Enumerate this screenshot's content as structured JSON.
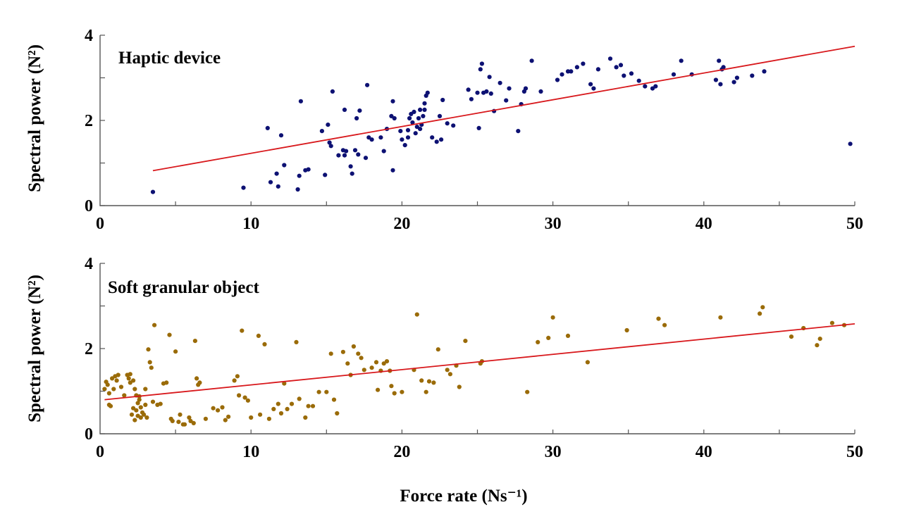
{
  "chart_data": [
    {
      "type": "scatter",
      "title": "Haptic device",
      "ylabel": "Spectral power (N²)",
      "xlim": [
        0,
        50
      ],
      "ylim": [
        0,
        4
      ],
      "xticks": [
        "0",
        "10",
        "20",
        "30",
        "40",
        "50"
      ],
      "yticks": [
        "0",
        "2",
        "4"
      ],
      "grid": false,
      "point_color": "#0d1173",
      "fit_color": "#d8181c",
      "fit_line": {
        "x": [
          3.5,
          50
        ],
        "y": [
          0.82,
          3.74
        ]
      },
      "points": [
        [
          3.5,
          0.32
        ],
        [
          9.5,
          0.42
        ],
        [
          11.1,
          1.82
        ],
        [
          11.3,
          0.55
        ],
        [
          11.7,
          0.75
        ],
        [
          11.8,
          0.45
        ],
        [
          12.0,
          1.65
        ],
        [
          12.2,
          0.95
        ],
        [
          13.1,
          0.38
        ],
        [
          13.3,
          2.45
        ],
        [
          13.2,
          0.7
        ],
        [
          13.6,
          0.83
        ],
        [
          13.8,
          0.85
        ],
        [
          14.7,
          1.75
        ],
        [
          14.9,
          0.72
        ],
        [
          15.1,
          1.9
        ],
        [
          15.2,
          1.48
        ],
        [
          15.3,
          1.4
        ],
        [
          15.4,
          2.68
        ],
        [
          15.8,
          1.18
        ],
        [
          16.1,
          1.3
        ],
        [
          16.2,
          2.25
        ],
        [
          16.2,
          1.18
        ],
        [
          16.3,
          1.28
        ],
        [
          16.6,
          0.92
        ],
        [
          16.7,
          0.75
        ],
        [
          16.9,
          1.3
        ],
        [
          17.1,
          1.2
        ],
        [
          17.0,
          2.05
        ],
        [
          17.2,
          2.23
        ],
        [
          17.7,
          2.83
        ],
        [
          17.6,
          1.12
        ],
        [
          17.8,
          1.6
        ],
        [
          18.0,
          1.55
        ],
        [
          18.6,
          1.6
        ],
        [
          18.8,
          1.28
        ],
        [
          19.0,
          1.8
        ],
        [
          19.3,
          2.1
        ],
        [
          19.4,
          2.45
        ],
        [
          19.5,
          2.05
        ],
        [
          19.4,
          0.83
        ],
        [
          19.9,
          1.75
        ],
        [
          20.0,
          1.55
        ],
        [
          20.2,
          1.42
        ],
        [
          20.4,
          1.77
        ],
        [
          20.4,
          1.6
        ],
        [
          20.5,
          2.05
        ],
        [
          20.6,
          2.15
        ],
        [
          20.7,
          1.95
        ],
        [
          20.8,
          2.2
        ],
        [
          20.9,
          1.7
        ],
        [
          21.0,
          1.85
        ],
        [
          21.1,
          2.05
        ],
        [
          21.2,
          1.8
        ],
        [
          21.2,
          2.25
        ],
        [
          21.3,
          1.9
        ],
        [
          21.4,
          2.1
        ],
        [
          21.5,
          2.4
        ],
        [
          21.6,
          2.58
        ],
        [
          21.7,
          2.65
        ],
        [
          21.5,
          2.25
        ],
        [
          22.0,
          1.6
        ],
        [
          22.3,
          1.5
        ],
        [
          22.5,
          2.1
        ],
        [
          22.6,
          1.55
        ],
        [
          22.7,
          2.48
        ],
        [
          23.0,
          1.93
        ],
        [
          23.4,
          1.88
        ],
        [
          24.4,
          2.72
        ],
        [
          24.6,
          2.5
        ],
        [
          25.0,
          2.65
        ],
        [
          25.1,
          1.82
        ],
        [
          25.2,
          3.2
        ],
        [
          25.3,
          3.33
        ],
        [
          25.4,
          2.65
        ],
        [
          25.6,
          2.68
        ],
        [
          25.8,
          3.02
        ],
        [
          25.9,
          2.63
        ],
        [
          26.1,
          2.22
        ],
        [
          26.5,
          2.88
        ],
        [
          26.9,
          2.47
        ],
        [
          27.1,
          2.75
        ],
        [
          27.7,
          1.75
        ],
        [
          27.9,
          2.38
        ],
        [
          28.1,
          2.68
        ],
        [
          28.2,
          2.75
        ],
        [
          28.6,
          3.4
        ],
        [
          29.2,
          2.68
        ],
        [
          30.3,
          2.95
        ],
        [
          30.6,
          3.08
        ],
        [
          31.0,
          3.15
        ],
        [
          31.2,
          3.15
        ],
        [
          31.6,
          3.25
        ],
        [
          32.0,
          3.33
        ],
        [
          32.5,
          2.85
        ],
        [
          32.7,
          2.75
        ],
        [
          33.0,
          3.2
        ],
        [
          33.8,
          3.45
        ],
        [
          34.2,
          3.25
        ],
        [
          34.5,
          3.3
        ],
        [
          34.7,
          3.05
        ],
        [
          35.2,
          3.1
        ],
        [
          35.7,
          2.93
        ],
        [
          36.1,
          2.8
        ],
        [
          36.6,
          2.75
        ],
        [
          36.8,
          2.8
        ],
        [
          38.0,
          3.08
        ],
        [
          38.5,
          3.4
        ],
        [
          39.2,
          3.08
        ],
        [
          40.8,
          2.95
        ],
        [
          41.0,
          3.4
        ],
        [
          41.1,
          2.85
        ],
        [
          41.2,
          3.2
        ],
        [
          41.3,
          3.25
        ],
        [
          42.0,
          2.9
        ],
        [
          42.2,
          3.0
        ],
        [
          43.2,
          3.05
        ],
        [
          44.0,
          3.15
        ],
        [
          49.7,
          1.45
        ]
      ]
    },
    {
      "type": "scatter",
      "title": "Soft granular object",
      "ylabel": "Spectral power (N²)",
      "xlabel": "Force rate (Ns⁻¹)",
      "xlim": [
        0,
        50
      ],
      "ylim": [
        0,
        4
      ],
      "xticks": [
        "0",
        "10",
        "20",
        "30",
        "40",
        "50"
      ],
      "yticks": [
        "0",
        "2",
        "4"
      ],
      "grid": false,
      "point_color": "#9a6b08",
      "fit_color": "#d8181c",
      "fit_line": {
        "x": [
          0.3,
          50
        ],
        "y": [
          0.8,
          2.58
        ]
      },
      "points": [
        [
          0.3,
          1.05
        ],
        [
          0.4,
          1.22
        ],
        [
          0.5,
          1.15
        ],
        [
          0.6,
          0.95
        ],
        [
          0.6,
          0.68
        ],
        [
          0.7,
          0.65
        ],
        [
          0.8,
          1.3
        ],
        [
          0.9,
          1.05
        ],
        [
          1.0,
          1.35
        ],
        [
          1.1,
          1.25
        ],
        [
          1.2,
          1.38
        ],
        [
          1.4,
          1.1
        ],
        [
          1.6,
          0.9
        ],
        [
          1.8,
          1.38
        ],
        [
          1.9,
          1.3
        ],
        [
          2.0,
          1.2
        ],
        [
          2.0,
          1.4
        ],
        [
          2.1,
          0.45
        ],
        [
          2.2,
          0.6
        ],
        [
          2.2,
          1.25
        ],
        [
          2.3,
          1.05
        ],
        [
          2.3,
          0.32
        ],
        [
          2.4,
          0.9
        ],
        [
          2.4,
          0.55
        ],
        [
          2.5,
          0.72
        ],
        [
          2.5,
          0.42
        ],
        [
          2.6,
          0.88
        ],
        [
          2.6,
          0.8
        ],
        [
          2.7,
          0.62
        ],
        [
          2.7,
          0.38
        ],
        [
          2.8,
          0.5
        ],
        [
          2.9,
          0.45
        ],
        [
          3.0,
          1.05
        ],
        [
          3.0,
          0.68
        ],
        [
          3.1,
          0.38
        ],
        [
          3.2,
          1.98
        ],
        [
          3.3,
          1.68
        ],
        [
          3.4,
          1.55
        ],
        [
          3.5,
          0.75
        ],
        [
          3.6,
          2.55
        ],
        [
          3.8,
          0.68
        ],
        [
          4.0,
          0.7
        ],
        [
          4.2,
          1.18
        ],
        [
          4.4,
          1.2
        ],
        [
          4.6,
          2.32
        ],
        [
          4.7,
          0.35
        ],
        [
          4.8,
          0.3
        ],
        [
          5.0,
          1.93
        ],
        [
          5.2,
          0.28
        ],
        [
          5.3,
          0.45
        ],
        [
          5.5,
          0.22
        ],
        [
          5.6,
          0.22
        ],
        [
          5.9,
          0.38
        ],
        [
          6.0,
          0.3
        ],
        [
          6.3,
          2.18
        ],
        [
          6.2,
          0.25
        ],
        [
          6.4,
          1.3
        ],
        [
          6.5,
          1.15
        ],
        [
          6.6,
          1.2
        ],
        [
          7.0,
          0.35
        ],
        [
          7.5,
          0.6
        ],
        [
          7.8,
          0.55
        ],
        [
          8.1,
          0.62
        ],
        [
          8.3,
          0.32
        ],
        [
          8.5,
          0.4
        ],
        [
          8.9,
          1.25
        ],
        [
          9.1,
          1.35
        ],
        [
          9.2,
          0.9
        ],
        [
          9.4,
          2.42
        ],
        [
          9.6,
          0.85
        ],
        [
          9.8,
          0.78
        ],
        [
          10.0,
          0.38
        ],
        [
          10.5,
          2.3
        ],
        [
          10.6,
          0.45
        ],
        [
          10.9,
          2.1
        ],
        [
          11.2,
          0.35
        ],
        [
          11.5,
          0.58
        ],
        [
          11.8,
          0.7
        ],
        [
          12.0,
          0.48
        ],
        [
          12.2,
          1.18
        ],
        [
          12.4,
          0.58
        ],
        [
          12.7,
          0.7
        ],
        [
          13.0,
          2.15
        ],
        [
          13.2,
          0.82
        ],
        [
          13.6,
          0.38
        ],
        [
          13.8,
          0.65
        ],
        [
          14.1,
          0.65
        ],
        [
          14.5,
          0.98
        ],
        [
          15.0,
          0.98
        ],
        [
          15.3,
          1.88
        ],
        [
          15.5,
          0.8
        ],
        [
          15.7,
          0.48
        ],
        [
          16.1,
          1.92
        ],
        [
          16.4,
          1.65
        ],
        [
          16.6,
          1.38
        ],
        [
          16.8,
          2.05
        ],
        [
          17.1,
          1.88
        ],
        [
          17.3,
          1.78
        ],
        [
          17.5,
          1.5
        ],
        [
          18.0,
          1.55
        ],
        [
          18.3,
          1.68
        ],
        [
          18.4,
          1.03
        ],
        [
          18.6,
          1.48
        ],
        [
          18.8,
          1.65
        ],
        [
          19.0,
          1.7
        ],
        [
          19.2,
          1.48
        ],
        [
          19.3,
          1.12
        ],
        [
          19.5,
          0.95
        ],
        [
          20.0,
          0.98
        ],
        [
          20.8,
          1.5
        ],
        [
          21.0,
          2.8
        ],
        [
          21.3,
          1.25
        ],
        [
          21.6,
          0.98
        ],
        [
          21.8,
          1.23
        ],
        [
          22.1,
          1.2
        ],
        [
          22.4,
          1.98
        ],
        [
          23.0,
          1.5
        ],
        [
          23.2,
          1.4
        ],
        [
          23.6,
          1.6
        ],
        [
          23.8,
          1.1
        ],
        [
          24.2,
          2.18
        ],
        [
          25.2,
          1.65
        ],
        [
          25.3,
          1.7
        ],
        [
          28.3,
          0.98
        ],
        [
          29.0,
          2.15
        ],
        [
          29.7,
          2.25
        ],
        [
          30.0,
          2.73
        ],
        [
          31.0,
          2.3
        ],
        [
          32.3,
          1.68
        ],
        [
          34.9,
          2.43
        ],
        [
          37.0,
          2.7
        ],
        [
          37.4,
          2.55
        ],
        [
          41.1,
          2.73
        ],
        [
          43.7,
          2.82
        ],
        [
          43.9,
          2.97
        ],
        [
          45.8,
          2.28
        ],
        [
          46.6,
          2.48
        ],
        [
          47.5,
          2.08
        ],
        [
          47.7,
          2.23
        ],
        [
          48.5,
          2.6
        ],
        [
          49.3,
          2.55
        ]
      ]
    }
  ]
}
